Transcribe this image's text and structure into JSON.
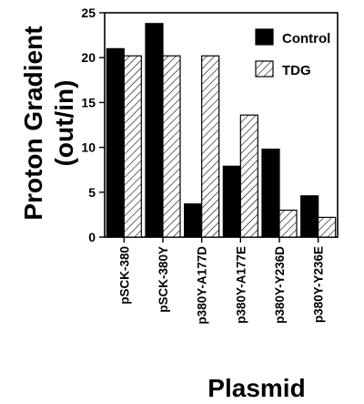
{
  "chart_data": {
    "type": "bar",
    "xlabel": "Plasmid",
    "ylabel_lines": [
      "Proton Gradient",
      "(out/in)"
    ],
    "ylim": [
      0,
      25
    ],
    "yticks": [
      0,
      5,
      10,
      15,
      20,
      25
    ],
    "categories": [
      "pSCK-380",
      "pSCK-380Y",
      "p380Y-A177D",
      "p380Y-A177E",
      "p380Y-Y236D",
      "p380Y-Y236E"
    ],
    "series": [
      {
        "name": "Control",
        "fill": "solid",
        "color": "#000000",
        "values": [
          21.0,
          23.8,
          3.7,
          7.9,
          9.8,
          4.6
        ]
      },
      {
        "name": "TDG",
        "fill": "hatched",
        "color": "#ffffff",
        "values": [
          20.2,
          20.2,
          20.2,
          13.6,
          3.0,
          2.2
        ]
      }
    ],
    "legend_position": "top-right",
    "grid": false
  }
}
